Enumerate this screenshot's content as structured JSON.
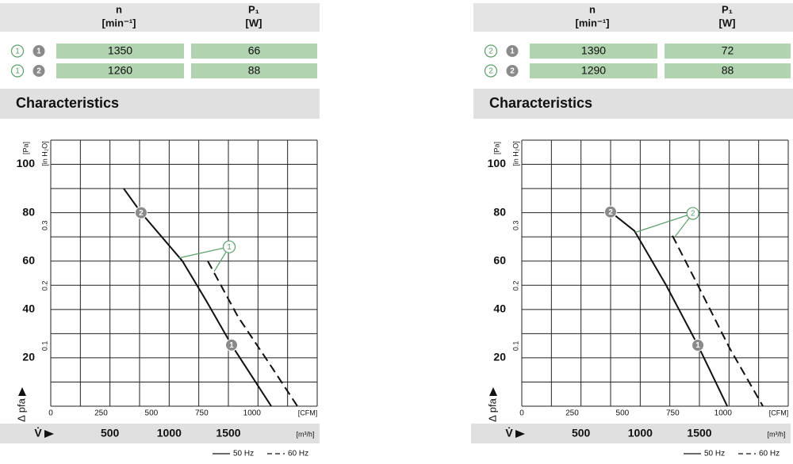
{
  "panels": [
    {
      "table": {
        "columns": [
          {
            "symbol": "n",
            "unit": "[min⁻¹]"
          },
          {
            "symbol": "P₁",
            "unit": "[W]"
          }
        ],
        "rows": [
          {
            "circuit": "1",
            "curve": "1",
            "values": [
              1350,
              66
            ]
          },
          {
            "circuit": "1",
            "curve": "2",
            "values": [
              1260,
              88
            ]
          }
        ]
      },
      "section_title": "Characteristics"
    },
    {
      "table": {
        "columns": [
          {
            "symbol": "n",
            "unit": "[min⁻¹]"
          },
          {
            "symbol": "P₁",
            "unit": "[W]"
          }
        ],
        "rows": [
          {
            "circuit": "2",
            "curve": "1",
            "values": [
              1390,
              72
            ]
          },
          {
            "circuit": "2",
            "curve": "2",
            "values": [
              1290,
              88
            ]
          }
        ]
      },
      "section_title": "Characteristics"
    }
  ],
  "chart_data": [
    {
      "type": "line",
      "xlabel": "V̇",
      "xunit": "[m³/h]",
      "xlim": [
        0,
        2250
      ],
      "xticks": [
        500,
        1000,
        1500
      ],
      "x2unit": "[CFM]",
      "x2lim": [
        0,
        1324
      ],
      "x2ticks": [
        0,
        250,
        500,
        750,
        1000
      ],
      "ylabel": "Δ pfa",
      "yunit": "[Pa]",
      "ylim": [
        0,
        110
      ],
      "yticks": [
        20,
        40,
        60,
        80,
        100
      ],
      "y2unit": "[in H₂O]",
      "y2lim": [
        0,
        0.4416
      ],
      "y2ticks": [
        0.1,
        0.2,
        0.3
      ],
      "xgrid": [
        0,
        250,
        500,
        750,
        1000,
        1250,
        1500,
        1750,
        2000,
        2250
      ],
      "ygrid": [
        0,
        10,
        20,
        30,
        40,
        50,
        60,
        70,
        80,
        90,
        100,
        110
      ],
      "series": [
        {
          "name": "50 Hz",
          "color": "#111111",
          "dash": false,
          "x": [
            616,
            763,
            1112,
            1313,
            1527,
            1862
          ],
          "values": [
            90,
            80,
            60,
            43.6,
            25.3,
            0
          ]
        },
        {
          "name": "60 Hz",
          "color": "#111111",
          "dash": true,
          "x": [
            1326,
            1581,
            1849,
            2083
          ],
          "values": [
            60,
            37,
            17.4,
            0
          ]
        }
      ],
      "points": [
        {
          "label": "2",
          "x": 763,
          "y": 80
        },
        {
          "label": "1",
          "x": 1527,
          "y": 25.3
        }
      ],
      "callout": {
        "label": "1",
        "color": "#5a9e6a",
        "x": 1507,
        "y": 65.9,
        "targets": [
          {
            "x": 1085,
            "y": 61.3
          },
          {
            "x": 1380,
            "y": 55.7
          }
        ]
      }
    },
    {
      "type": "line",
      "xlabel": "V̇",
      "xunit": "[m³/h]",
      "xlim": [
        0,
        2250
      ],
      "xticks": [
        500,
        1000,
        1500
      ],
      "x2unit": "[CFM]",
      "x2lim": [
        0,
        1324
      ],
      "x2ticks": [
        0,
        250,
        500,
        750,
        1000
      ],
      "ylabel": "Δ pfa",
      "yunit": "[Pa]",
      "ylim": [
        0,
        110
      ],
      "yticks": [
        20,
        40,
        60,
        80,
        100
      ],
      "y2unit": "[in H₂O]",
      "y2lim": [
        0,
        0.4416
      ],
      "y2ticks": [
        0.1,
        0.2,
        0.3
      ],
      "xgrid": [
        0,
        250,
        500,
        750,
        1000,
        1250,
        1500,
        1750,
        2000,
        2250
      ],
      "ygrid": [
        0,
        10,
        20,
        30,
        40,
        50,
        60,
        70,
        80,
        90,
        100,
        110
      ],
      "series": [
        {
          "name": "50 Hz",
          "color": "#111111",
          "dash": false,
          "x": [
            750,
            951,
            1219,
            1487,
            1735
          ],
          "values": [
            80.3,
            72.5,
            50,
            25.2,
            0
          ]
        },
        {
          "name": "60 Hz",
          "color": "#111111",
          "dash": true,
          "x": [
            1272,
            1487,
            1755,
            2036
          ],
          "values": [
            70.5,
            50,
            24,
            0
          ]
        }
      ],
      "points": [
        {
          "label": "2",
          "x": 750,
          "y": 80.3
        },
        {
          "label": "1",
          "x": 1487,
          "y": 25.2
        }
      ],
      "callout": {
        "label": "2",
        "color": "#5a9e6a",
        "x": 1444,
        "y": 79.7,
        "targets": [
          {
            "x": 960,
            "y": 71.9
          },
          {
            "x": 1292,
            "y": 70
          }
        ]
      }
    }
  ]
}
